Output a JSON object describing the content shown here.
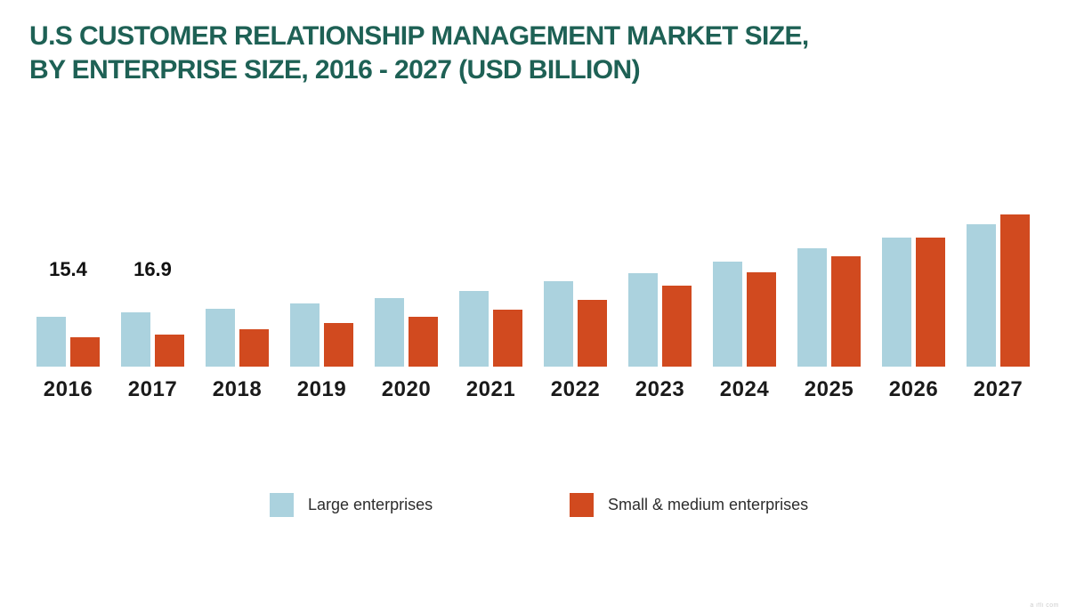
{
  "title": {
    "line1": "U.S CUSTOMER RELATIONSHIP MANAGEMENT MARKET SIZE,",
    "line2": "BY ENTERPRISE SIZE, 2016 - 2027 (USD BILLION)"
  },
  "colors": {
    "title": "#1E6155",
    "large_enterprises": "#ABD2DE",
    "small_medium_enterprises": "#D14A1F",
    "axis_text": "#1a1a1a"
  },
  "legend": {
    "items": [
      {
        "label": "Large enterprises",
        "color": "#ABD2DE"
      },
      {
        "label": "Small & medium enterprises",
        "color": "#D14A1F"
      }
    ]
  },
  "watermark": {
    "text": "a ifli  com"
  },
  "chart_data": {
    "type": "bar",
    "title": "U.S CUSTOMER RELATIONSHIP MANAGEMENT MARKET SIZE, BY ENTERPRISE SIZE, 2016 - 2027 (USD BILLION)",
    "unit": "USD Billion",
    "xlabel": "",
    "ylabel": "",
    "ylim": [
      0,
      50
    ],
    "grid": false,
    "legend_position": "bottom",
    "categories": [
      "2016",
      "2017",
      "2018",
      "2019",
      "2020",
      "2021",
      "2022",
      "2023",
      "2024",
      "2025",
      "2026",
      "2027"
    ],
    "series": [
      {
        "name": "Large enterprises",
        "color": "#ABD2DE",
        "values": [
          15.4,
          16.9,
          18.0,
          19.7,
          21.3,
          23.5,
          26.6,
          29.1,
          32.7,
          36.8,
          40.2,
          44.3
        ]
      },
      {
        "name": "Small & medium enterprises",
        "color": "#D14A1F",
        "values": [
          9.1,
          10.0,
          11.6,
          13.6,
          15.5,
          17.7,
          20.8,
          25.2,
          29.4,
          34.3,
          40.2,
          47.4
        ]
      }
    ],
    "data_labels": {
      "2016": "15.4",
      "2017": "16.9"
    }
  }
}
